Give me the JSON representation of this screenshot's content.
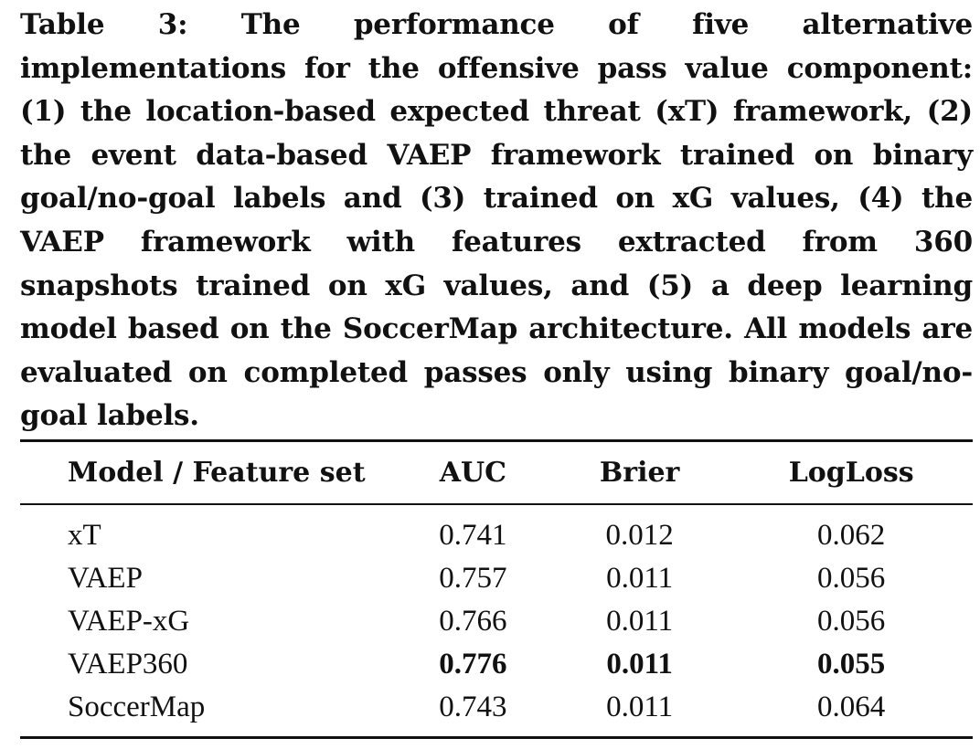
{
  "caption": {
    "label": "Table 3:",
    "text": "The performance of five alternative implementations for the offensive pass value component: (1) the location-based expected threat (xT) framework, (2) the event data-based VAEP framework trained on binary goal/no-goal labels and (3) trained on xG values, (4) the VAEP framework with fea­tures extracted from 360 snapshots trained on xG values, and (5) a deep learning model based on the SoccerMap archi­tecture. All models are evaluated on completed passes only using binary goal/no-goal labels."
  },
  "table": {
    "headers": [
      "Model / Feature set",
      "AUC",
      "Brier",
      "LogLoss"
    ],
    "rows": [
      {
        "model": "xT",
        "auc": "0.741",
        "brier": "0.012",
        "logloss": "0.062",
        "bold": false
      },
      {
        "model": "VAEP",
        "auc": "0.757",
        "brier": "0.011",
        "logloss": "0.056",
        "bold": false
      },
      {
        "model": "VAEP-xG",
        "auc": "0.766",
        "brier": "0.011",
        "logloss": "0.056",
        "bold": false
      },
      {
        "model": "VAEP360",
        "auc": "0.776",
        "brier": "0.011",
        "logloss": "0.055",
        "bold": true
      },
      {
        "model": "SoccerMap",
        "auc": "0.743",
        "brier": "0.011",
        "logloss": "0.064",
        "bold": false
      }
    ]
  }
}
